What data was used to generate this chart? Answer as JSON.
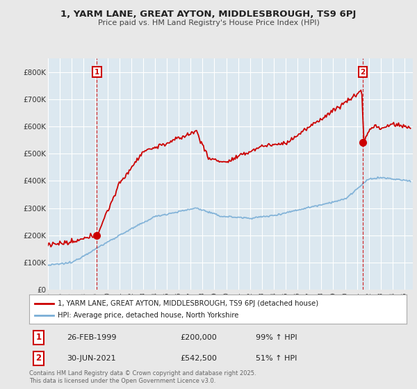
{
  "title": "1, YARM LANE, GREAT AYTON, MIDDLESBROUGH, TS9 6PJ",
  "subtitle": "Price paid vs. HM Land Registry's House Price Index (HPI)",
  "background_color": "#e8e8e8",
  "plot_bg_color": "#dce8f0",
  "grid_color": "#ffffff",
  "red_color": "#cc0000",
  "blue_color": "#7aaed6",
  "legend_label_red": "1, YARM LANE, GREAT AYTON, MIDDLESBROUGH, TS9 6PJ (detached house)",
  "legend_label_blue": "HPI: Average price, detached house, North Yorkshire",
  "annotation1_date": "26-FEB-1999",
  "annotation1_price": "£200,000",
  "annotation1_hpi": "99% ↑ HPI",
  "annotation2_date": "30-JUN-2021",
  "annotation2_price": "£542,500",
  "annotation2_hpi": "51% ↑ HPI",
  "footer": "Contains HM Land Registry data © Crown copyright and database right 2025.\nThis data is licensed under the Open Government Licence v3.0.",
  "ylim": [
    0,
    850000
  ],
  "yticks": [
    0,
    100000,
    200000,
    300000,
    400000,
    500000,
    600000,
    700000,
    800000
  ],
  "ytick_labels": [
    "£0",
    "£100K",
    "£200K",
    "£300K",
    "£400K",
    "£500K",
    "£600K",
    "£700K",
    "£800K"
  ],
  "sale1_year": 1999.12,
  "sale1_value": 200000,
  "sale2_year": 2021.5,
  "sale2_value": 542500
}
